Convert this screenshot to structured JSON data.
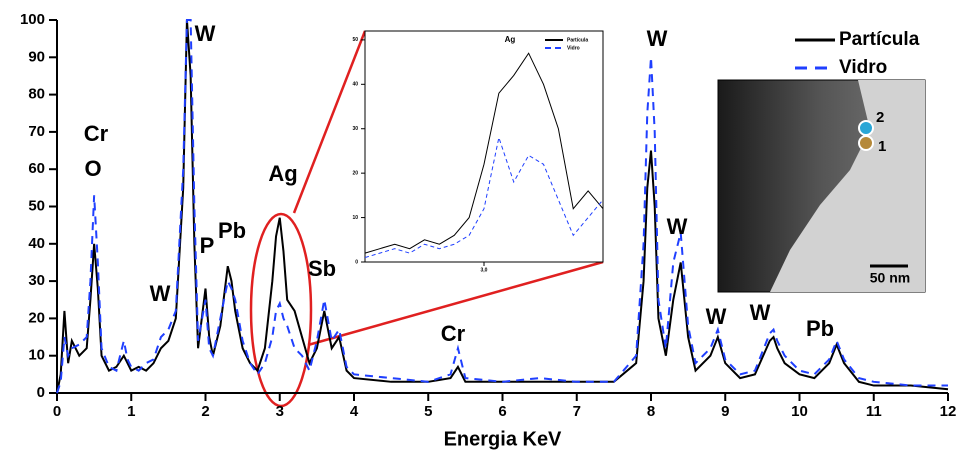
{
  "chart_data": [
    {
      "type": "line",
      "x_label": "Energia KeV",
      "xlim": [
        0,
        12
      ],
      "xticks": [
        0,
        1,
        2,
        3,
        4,
        5,
        6,
        7,
        8,
        9,
        10,
        11,
        12
      ],
      "ylim": [
        0,
        100
      ],
      "yticks": [
        0,
        10,
        20,
        30,
        40,
        50,
        60,
        70,
        80,
        90,
        100
      ],
      "legend": "top-right",
      "x": [
        0,
        0.05,
        0.1,
        0.15,
        0.2,
        0.3,
        0.4,
        0.45,
        0.5,
        0.55,
        0.6,
        0.7,
        0.8,
        0.9,
        0.95,
        1.0,
        1.1,
        1.2,
        1.3,
        1.4,
        1.5,
        1.6,
        1.7,
        1.75,
        1.8,
        1.85,
        1.9,
        2.0,
        2.05,
        2.1,
        2.2,
        2.3,
        2.35,
        2.4,
        2.5,
        2.6,
        2.7,
        2.8,
        2.9,
        2.95,
        3.0,
        3.05,
        3.1,
        3.2,
        3.3,
        3.4,
        3.5,
        3.6,
        3.7,
        3.8,
        3.9,
        4.0,
        4.5,
        5.0,
        5.3,
        5.4,
        5.5,
        6.0,
        6.5,
        7.0,
        7.5,
        7.8,
        7.9,
        7.95,
        8.0,
        8.05,
        8.1,
        8.2,
        8.3,
        8.4,
        8.5,
        8.6,
        8.8,
        8.9,
        9.0,
        9.2,
        9.4,
        9.6,
        9.65,
        9.7,
        9.8,
        10.0,
        10.2,
        10.4,
        10.5,
        10.6,
        10.8,
        11.0,
        11.5,
        12.0
      ],
      "series": [
        {
          "name": "Partícula",
          "color": "#000000",
          "style": "solid",
          "values": [
            0,
            5,
            22,
            8,
            14,
            10,
            12,
            25,
            40,
            28,
            10,
            6,
            7,
            10,
            8,
            6,
            7,
            6,
            8,
            12,
            14,
            20,
            55,
            100,
            85,
            40,
            12,
            28,
            15,
            10,
            18,
            34,
            30,
            22,
            12,
            8,
            6,
            12,
            30,
            42,
            47,
            38,
            25,
            22,
            15,
            8,
            12,
            22,
            12,
            15,
            6,
            4,
            3,
            3,
            4,
            7,
            3,
            3,
            3,
            3,
            3,
            8,
            30,
            55,
            65,
            50,
            20,
            10,
            25,
            35,
            15,
            6,
            10,
            15,
            8,
            4,
            5,
            14,
            15,
            12,
            8,
            5,
            4,
            8,
            13,
            8,
            3,
            2,
            2,
            1
          ]
        },
        {
          "name": "Vidro",
          "color": "#1f3fff",
          "style": "dashed",
          "values": [
            0,
            3,
            15,
            10,
            12,
            13,
            15,
            30,
            53,
            35,
            12,
            7,
            6,
            14,
            9,
            7,
            6,
            8,
            9,
            15,
            17,
            22,
            60,
            100,
            100,
            50,
            14,
            25,
            12,
            10,
            20,
            30,
            28,
            25,
            14,
            8,
            5,
            8,
            15,
            22,
            24,
            20,
            18,
            12,
            10,
            6,
            14,
            25,
            14,
            17,
            7,
            5,
            4,
            3,
            5,
            12,
            4,
            3,
            4,
            3,
            3,
            10,
            40,
            75,
            90,
            70,
            25,
            12,
            35,
            43,
            18,
            8,
            12,
            17,
            9,
            5,
            6,
            16,
            17,
            14,
            10,
            6,
            5,
            9,
            14,
            9,
            4,
            3,
            2,
            2
          ]
        }
      ],
      "annotations": [
        "Cr",
        "O",
        "W",
        "P",
        "Pb",
        "Ag",
        "Sb",
        "W",
        "Cr",
        "W",
        "W",
        "W",
        "W",
        "Pb"
      ]
    },
    {
      "type": "line",
      "title": "Ag",
      "xlim": [
        2.6,
        3.4
      ],
      "xticks": [
        {
          "value": 3,
          "label": "3,0"
        }
      ],
      "ylim": [
        0,
        52
      ],
      "yticks": [
        0,
        10,
        20,
        30,
        40,
        50
      ],
      "legend": "top-right",
      "x": [
        2.6,
        2.65,
        2.7,
        2.75,
        2.8,
        2.85,
        2.9,
        2.95,
        3.0,
        3.05,
        3.1,
        3.15,
        3.2,
        3.25,
        3.3,
        3.35,
        3.4
      ],
      "series": [
        {
          "name": "Partícula",
          "color": "#000000",
          "style": "solid",
          "values": [
            2,
            3,
            4,
            3,
            5,
            4,
            6,
            10,
            22,
            38,
            42,
            47,
            40,
            30,
            12,
            16,
            12
          ]
        },
        {
          "name": "Vidro",
          "color": "#1f3fff",
          "style": "dashed",
          "values": [
            1,
            2,
            3,
            2,
            4,
            3,
            4,
            6,
            12,
            28,
            18,
            24,
            22,
            14,
            6,
            10,
            14
          ]
        }
      ]
    }
  ],
  "image": {
    "labels": [
      "2",
      "1",
      "50 nm"
    ]
  }
}
